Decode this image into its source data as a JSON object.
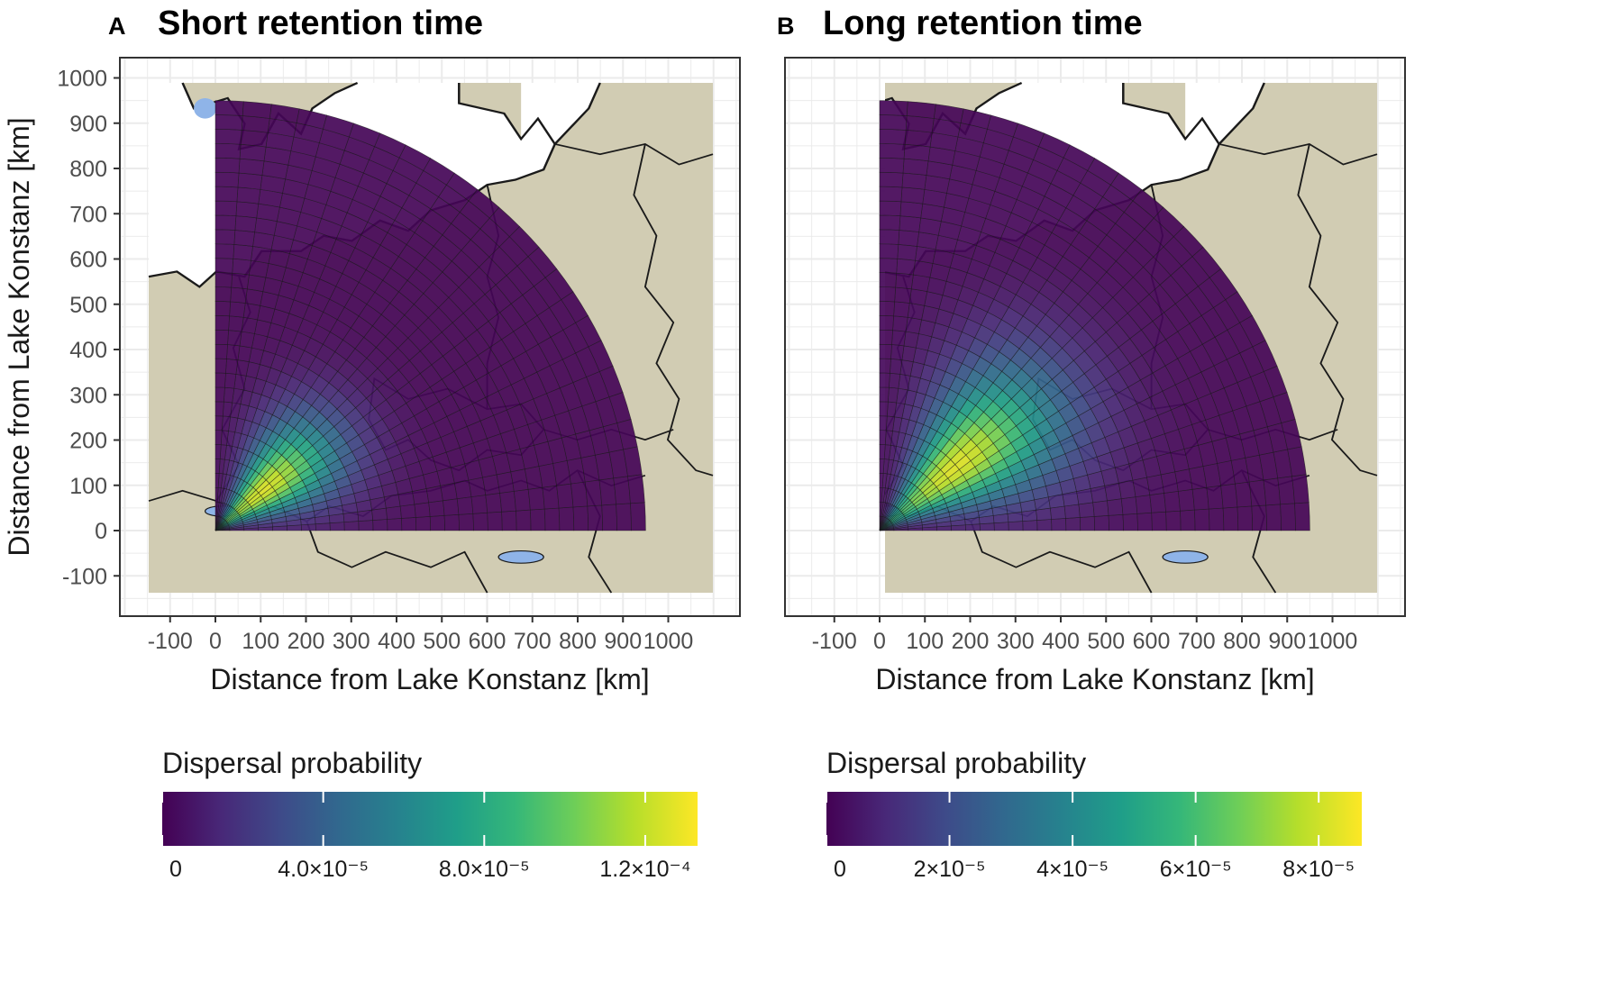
{
  "chart_data": [
    {
      "type": "heatmap",
      "panel": "A",
      "title": "Short retention time",
      "xlabel": "Distance from Lake Konstanz [km]",
      "ylabel": "Distance from Lake Konstanz [km]",
      "xlim": [
        -200,
        1100
      ],
      "ylim": [
        -200,
        1100
      ],
      "x_ticks": [
        -100,
        0,
        100,
        200,
        300,
        400,
        500,
        600,
        700,
        800,
        900,
        1000
      ],
      "y_ticks": [
        -100,
        0,
        100,
        200,
        300,
        400,
        500,
        600,
        700,
        800,
        900,
        1000
      ],
      "grid": true,
      "sector": {
        "radius_max_km": 950,
        "angle_range_deg": [
          0,
          90
        ],
        "radial_bins": 30,
        "angular_bins": 24
      },
      "peak": {
        "distance_km": 140,
        "bearing_deg": 40,
        "value": 0.000125
      },
      "legend": {
        "title": "Dispersal probability",
        "placement": "bottom",
        "range": [
          0,
          0.000133
        ],
        "ticks": [
          0,
          4e-05,
          8e-05,
          0.00012
        ],
        "tick_labels": [
          "0",
          "4.0×10⁻⁵",
          "8.0×10⁻⁵",
          "1.2×10⁻⁴"
        ]
      }
    },
    {
      "type": "heatmap",
      "panel": "B",
      "title": "Long retention time",
      "xlabel": "Distance from Lake Konstanz [km]",
      "ylabel": "",
      "xlim": [
        -200,
        1100
      ],
      "ylim": [
        -200,
        1100
      ],
      "x_ticks": [
        -100,
        0,
        100,
        200,
        300,
        400,
        500,
        600,
        700,
        800,
        900,
        1000
      ],
      "y_ticks": [],
      "grid": true,
      "sector": {
        "radius_max_km": 950,
        "angle_range_deg": [
          0,
          90
        ],
        "radial_bins": 30,
        "angular_bins": 24
      },
      "peak": {
        "distance_km": 220,
        "bearing_deg": 40,
        "value": 8.2e-05
      },
      "legend": {
        "title": "Dispersal probability",
        "placement": "bottom",
        "range": [
          0,
          8.7e-05
        ],
        "ticks": [
          0,
          2e-05,
          4e-05,
          6e-05,
          8e-05
        ],
        "tick_labels": [
          "0",
          "2×10⁻⁵",
          "4×10⁻⁵",
          "6×10⁻⁵",
          "8×10⁻⁵"
        ]
      }
    }
  ],
  "colors": {
    "land": "#d1ccb3",
    "water": "#8fb4e8",
    "border": "#1a1a1a",
    "grid": "#ebebeb",
    "panel_border": "#333333",
    "viridis": [
      "#440154",
      "#482878",
      "#3e4a89",
      "#31688e",
      "#26828e",
      "#1f9e89",
      "#35b779",
      "#6ece58",
      "#b5de2b",
      "#fde725"
    ]
  }
}
